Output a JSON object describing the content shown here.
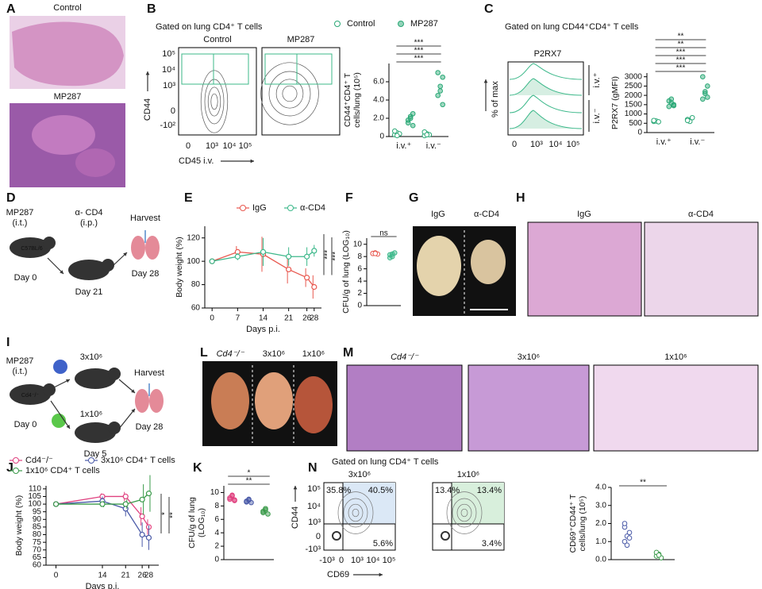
{
  "figure": {
    "letters": [
      "A",
      "B",
      "C",
      "D",
      "E",
      "F",
      "G",
      "H",
      "I",
      "J",
      "K",
      "L",
      "M",
      "N"
    ],
    "A": {
      "top": "Control",
      "bottom": "MP287"
    },
    "B": {
      "gate": "Gated on lung CD4⁺ T cells",
      "plots": [
        "Control",
        "MP287"
      ],
      "ylabel": "CD44",
      "xlabel": "CD45 i.v.",
      "yticks": [
        "10⁵",
        "10⁴",
        "10³",
        "0",
        "-10²"
      ],
      "xticks": [
        "0",
        "10³",
        "10⁴",
        "10⁵"
      ]
    },
    "C": {
      "gate": "Gated on lung CD44⁺CD4⁺ T cells",
      "hist_title": "P2RX7",
      "ylabel": "% of max",
      "xticks": [
        "0",
        "10³",
        "10⁴",
        "10⁵"
      ],
      "groups": [
        "i.v.⁺",
        "i.v.⁻"
      ]
    },
    "D": {
      "labels": [
        "MP287",
        "(i.t.)",
        "C57BL/6",
        "α- CD4",
        "(i.p.)",
        "Harvest",
        "Day 0",
        "Day 21",
        "Day 28"
      ]
    },
    "G": {
      "labels": [
        "IgG",
        "α-CD4"
      ]
    },
    "H": {
      "labels": [
        "IgG",
        "α-CD4"
      ]
    },
    "I": {
      "labels": [
        "MP287",
        "(i.t.)",
        "Cd4⁻/⁻",
        "3x10⁶",
        "1x10⁶",
        "Harvest",
        "Day 0",
        "Day 5",
        "Day 28"
      ]
    },
    "L": {
      "labels": [
        "Cd4⁻/⁻",
        "3x10⁶",
        "1x10⁶"
      ]
    },
    "M": {
      "labels": [
        "Cd4⁻/⁻",
        "3x10⁶",
        "1x10⁶"
      ]
    },
    "N": {
      "gate": "Gated on lung CD4⁺ T cells",
      "plots": [
        "3x10⁶",
        "1x10⁶"
      ],
      "quadrants": [
        [
          "35.8%",
          "40.5%",
          "5.6%"
        ],
        [
          "13.4%",
          "13.4%",
          "3.4%"
        ]
      ],
      "ylabel": "CD44",
      "xlabel": "CD69",
      "yticks": [
        "10⁵",
        "10⁴",
        "10³",
        "0",
        "-10³"
      ],
      "xticks": [
        "-10³",
        "0",
        "10³",
        "10⁴",
        "10⁵"
      ]
    }
  },
  "chart_data": [
    {
      "type": "dot",
      "ylabel": [
        "CD44⁺CD4⁺ T",
        "cells/lung (10⁵)"
      ],
      "categories": [
        "i.v.⁺",
        "i.v.⁻"
      ],
      "legend": "top",
      "series": [
        {
          "name": "Control",
          "color": "#2aa876",
          "filled": false,
          "values": [
            [
              0.2,
              0.4,
              0.3,
              0.6,
              0.1
            ],
            [
              0.1,
              0.3,
              0.2,
              0.5,
              0.2
            ]
          ]
        },
        {
          "name": "MP287",
          "color": "#2aa876",
          "filled": true,
          "values": [
            [
              1.5,
              2.0,
              2.5,
              1.8,
              2.2,
              1.2
            ],
            [
              4.5,
              5.5,
              6.5,
              7.0,
              5.0,
              3.5
            ]
          ]
        }
      ],
      "ylim": [
        0,
        8
      ],
      "yticks": [
        0,
        {
          "value": 2,
          "label": "2.0"
        },
        {
          "value": 4,
          "label": "4.0"
        },
        {
          "value": 6,
          "label": "6.0"
        }
      ],
      "annotations": [
        "***",
        "***",
        "***"
      ]
    },
    {
      "type": "dot",
      "ylabel": [
        "P2RX7 (gMFI)"
      ],
      "categories": [
        "i.v.⁺",
        "i.v.⁻"
      ],
      "series": [
        {
          "color": "#2aa876",
          "filled": false,
          "values": [
            [
              600,
              620,
              580,
              650
            ],
            [
              700,
              600,
              800,
              650
            ]
          ]
        },
        {
          "color": "#2aa876",
          "filled": true,
          "values": [
            [
              1400,
              1600,
              1500,
              1700,
              1800,
              1450
            ],
            [
              1800,
              2200,
              2500,
              3000,
              2100,
              1900
            ]
          ]
        }
      ],
      "ylim": [
        0,
        3200
      ],
      "yticks": [
        0,
        500,
        1000,
        1500,
        2000,
        2500,
        3000
      ],
      "annotations": [
        "***",
        "***",
        "***",
        "**",
        "**"
      ]
    },
    {
      "type": "line",
      "ylabel": [
        "Body weight (%)"
      ],
      "xlabel": "Days p.i.",
      "legend": "top",
      "x": [
        0,
        7,
        14,
        21,
        26,
        28
      ],
      "xlim": [
        -2,
        30
      ],
      "xticks": [
        0,
        7,
        14,
        21,
        26,
        28
      ],
      "ylim": [
        60,
        130
      ],
      "yticks": [
        60,
        80,
        100,
        120
      ],
      "series": [
        {
          "name": "IgG",
          "color": "#e8584f",
          "values": [
            100,
            108,
            106,
            93,
            86,
            78
          ],
          "errors": [
            2,
            5,
            15,
            12,
            8,
            10
          ]
        },
        {
          "name": "α-CD4",
          "color": "#3cb88a",
          "values": [
            100,
            104,
            108,
            104,
            104,
            109
          ],
          "errors": [
            2,
            3,
            12,
            8,
            8,
            5
          ]
        }
      ],
      "annotations": [
        "***",
        "***"
      ]
    },
    {
      "type": "dot",
      "ylabel": [
        "CFU/g of lung (LOG₁₀)"
      ],
      "categories": [
        null,
        null
      ],
      "series": [
        {
          "color": "#e8584f",
          "filled": false,
          "values": [
            [
              8.5,
              8.6,
              8.4,
              8.5,
              8.5
            ],
            null
          ]
        },
        {
          "color": "#3cb88a",
          "filled": true,
          "values": [
            null,
            [
              8.3,
              8.0,
              8.6,
              7.8,
              8.4
            ]
          ]
        }
      ],
      "ylim": [
        0,
        11
      ],
      "yticks": [
        0,
        2,
        4,
        6,
        8,
        10
      ],
      "annotations": [
        "ns"
      ]
    },
    {
      "type": "line",
      "ylabel": [
        "Body weight (%)"
      ],
      "xlabel": "Days p.i.",
      "legend": "top",
      "x": [
        0,
        14,
        21,
        26,
        28
      ],
      "xlim": [
        -3,
        31
      ],
      "xticks": [
        0,
        14,
        21,
        26,
        28
      ],
      "ylim": [
        60,
        112
      ],
      "yticks": [
        60,
        65,
        70,
        75,
        80,
        85,
        90,
        95,
        100,
        105,
        110
      ],
      "series": [
        {
          "name": "Cd4⁻/⁻",
          "color": "#e0407f",
          "values": [
            100,
            105,
            105,
            92,
            85
          ],
          "errors": [
            1,
            2,
            3,
            6,
            5
          ]
        },
        {
          "name": "3x10⁶ CD4⁺ T cells",
          "color": "#4a5aa8",
          "values": [
            100,
            102,
            97,
            80,
            78
          ],
          "errors": [
            1,
            3,
            5,
            8,
            8
          ]
        },
        {
          "name": "1x10⁶ CD4⁺ T cells",
          "color": "#3a9a4a",
          "values": [
            100,
            100,
            100,
            103,
            107
          ],
          "errors": [
            1,
            2,
            3,
            10,
            12
          ]
        }
      ],
      "annotations": [
        "*",
        "**"
      ]
    },
    {
      "type": "dot",
      "ylabel": [
        "CFU/g of lung",
        "(LOG₁₀)"
      ],
      "categories": [
        null,
        null,
        null
      ],
      "series": [
        {
          "color": "#e0407f",
          "filled": true,
          "values": [
            [
              9.2,
              9.5,
              8.8,
              9.0,
              9.6,
              8.9
            ],
            null,
            null
          ]
        },
        {
          "color": "#4a5aa8",
          "filled": true,
          "values": [
            null,
            [
              8.7,
              8.9,
              8.5,
              8.6,
              9.0
            ],
            null
          ]
        },
        {
          "color": "#3a9a4a",
          "filled": true,
          "values": [
            null,
            null,
            [
              7.2,
              7.6,
              6.8,
              7.0,
              7.4
            ]
          ]
        }
      ],
      "ylim": [
        0,
        11
      ],
      "yticks": [
        0,
        2,
        4,
        6,
        8,
        10
      ],
      "annotations": [
        "**",
        "*"
      ]
    },
    {
      "type": "dot",
      "ylabel": [
        "CD69⁺CD44⁺ T",
        "cells/lung (10⁵)"
      ],
      "categories": [
        null,
        null
      ],
      "series": [
        {
          "color": "#4a5aa8",
          "filled": false,
          "values": [
            [
              1.0,
              1.3,
              1.5,
              1.8,
              0.8,
              1.2,
              2.0
            ],
            null
          ]
        },
        {
          "color": "#3a9a4a",
          "filled": false,
          "values": [
            null,
            [
              0.2,
              0.3,
              0.1,
              0.4,
              0.25
            ]
          ]
        }
      ],
      "ylim": [
        0,
        4
      ],
      "yticks": [
        {
          "value": 0,
          "label": "0.0"
        },
        {
          "value": 1,
          "label": "1.0"
        },
        {
          "value": 2,
          "label": "2.0"
        },
        {
          "value": 3,
          "label": "3.0"
        },
        {
          "value": 4,
          "label": "4.0"
        }
      ],
      "annotations": [
        "**"
      ]
    }
  ]
}
